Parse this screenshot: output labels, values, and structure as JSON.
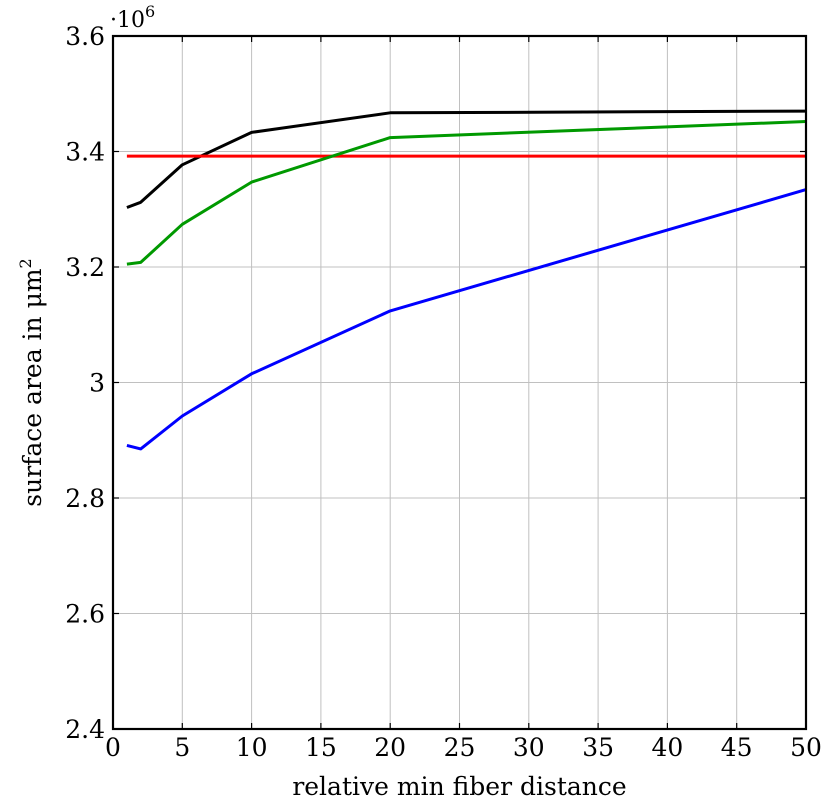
{
  "chart_data": {
    "type": "line",
    "title": "",
    "xlabel": "relative min fiber distance",
    "ylabel": "surface area in μm²",
    "ylabel_base": "surface area in μm",
    "ylabel_sup": "2",
    "y_multiplier": "·10",
    "y_multiplier_exp": "6",
    "xlim": [
      0,
      50
    ],
    "ylim": [
      2.4,
      3.6
    ],
    "xticks": [
      0,
      5,
      10,
      15,
      20,
      25,
      30,
      35,
      40,
      45,
      50
    ],
    "xtick_labels": [
      "0",
      "5",
      "10",
      "15",
      "20",
      "25",
      "30",
      "35",
      "40",
      "45",
      "50"
    ],
    "yticks": [
      2.4,
      2.6,
      2.8,
      3.0,
      3.2,
      3.4,
      3.6
    ],
    "ytick_labels": [
      "2.4",
      "2.6",
      "2.8",
      "3",
      "3.2",
      "3.4",
      "3.6"
    ],
    "grid": true,
    "legend": "none",
    "series": [
      {
        "color": "#000000",
        "x": [
          1,
          2,
          5,
          10,
          20,
          50
        ],
        "y": [
          3.303,
          3.312,
          3.377,
          3.433,
          3.467,
          3.47
        ]
      },
      {
        "color": "#ff0000",
        "x": [
          1,
          50
        ],
        "y": [
          3.392,
          3.392
        ]
      },
      {
        "color": "#009900",
        "x": [
          1,
          2,
          5,
          10,
          20,
          50
        ],
        "y": [
          3.205,
          3.208,
          3.274,
          3.347,
          3.424,
          3.452
        ]
      },
      {
        "color": "#0000ff",
        "x": [
          1,
          2,
          5,
          10,
          20,
          50
        ],
        "y": [
          2.891,
          2.885,
          2.942,
          3.015,
          3.124,
          3.334
        ]
      }
    ]
  }
}
